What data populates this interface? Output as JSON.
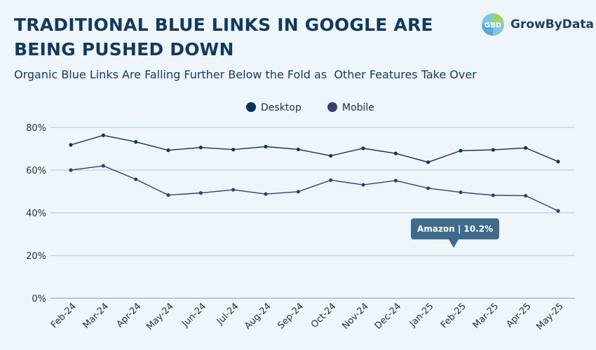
{
  "header": {
    "title": "TRADITIONAL BLUE LINKS IN GOOGLE ARE BEING PUSHED DOWN",
    "subtitle": "Organic Blue Links Are Falling Further Below the Fold as  Other Features Take Over",
    "logo_text": "GrowByData",
    "logo_mark": "GBD"
  },
  "tooltip": {
    "text": "Amazon | 10.2%"
  },
  "colors": {
    "desktop": "#0b3558",
    "mobile": "#3f3a70",
    "grid": "#a9c9da",
    "tooltip_bg": "#3f6a8c"
  },
  "chart_data": {
    "type": "line",
    "categories": [
      "Feb-24",
      "Mar-24",
      "Apr-24",
      "May-24",
      "Jun-24",
      "Jul-24",
      "Aug-24",
      "Sep-24",
      "Oct-24",
      "Nov-24",
      "Dec-24",
      "Jan-25",
      "Feb-25",
      "Mar-25",
      "Apr-25",
      "May-25"
    ],
    "series": [
      {
        "name": "Desktop",
        "values": [
          71.8,
          76.3,
          73.2,
          69.3,
          70.6,
          69.6,
          71.0,
          69.7,
          66.7,
          70.2,
          67.8,
          63.7,
          69.1,
          69.5,
          70.4,
          64.0
        ]
      },
      {
        "name": "Mobile",
        "values": [
          60.0,
          62.0,
          55.7,
          48.3,
          49.3,
          50.8,
          48.8,
          49.9,
          55.3,
          53.1,
          55.1,
          51.5,
          49.6,
          48.2,
          48.0,
          40.9
        ]
      }
    ],
    "yticks": [
      "0%",
      "20%",
      "40%",
      "60%",
      "80%"
    ],
    "ytick_values": [
      0,
      20,
      40,
      60,
      80
    ],
    "ylim": [
      0,
      80
    ],
    "grid": true,
    "legend_position": "top-center"
  }
}
